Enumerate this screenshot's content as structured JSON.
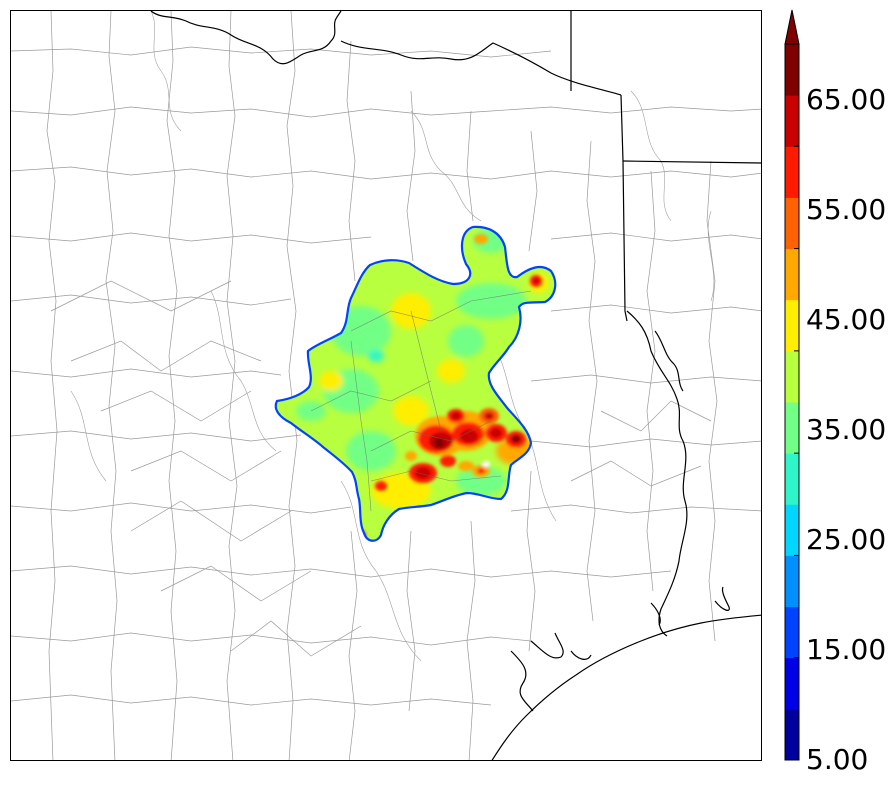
{
  "colorbar": {
    "tick_labels": [
      "5.00",
      "15.00",
      "25.00",
      "35.00",
      "45.00",
      "55.00",
      "65.00"
    ],
    "levels": [
      5,
      10,
      15,
      20,
      25,
      30,
      35,
      40,
      45,
      50,
      55,
      60,
      65,
      70
    ],
    "colors": [
      "#00009e",
      "#0000e6",
      "#0044ff",
      "#0090ff",
      "#00d6ff",
      "#2ef6c8",
      "#72ff85",
      "#b8ff3f",
      "#ffee00",
      "#ffa800",
      "#ff6200",
      "#ff1b00",
      "#c90000",
      "#800000"
    ],
    "extend": "max"
  },
  "map": {
    "background": "#ffffff",
    "county_line_color": "#9a9a9a",
    "state_line_color": "#000000",
    "coast_color": "#000000"
  }
}
